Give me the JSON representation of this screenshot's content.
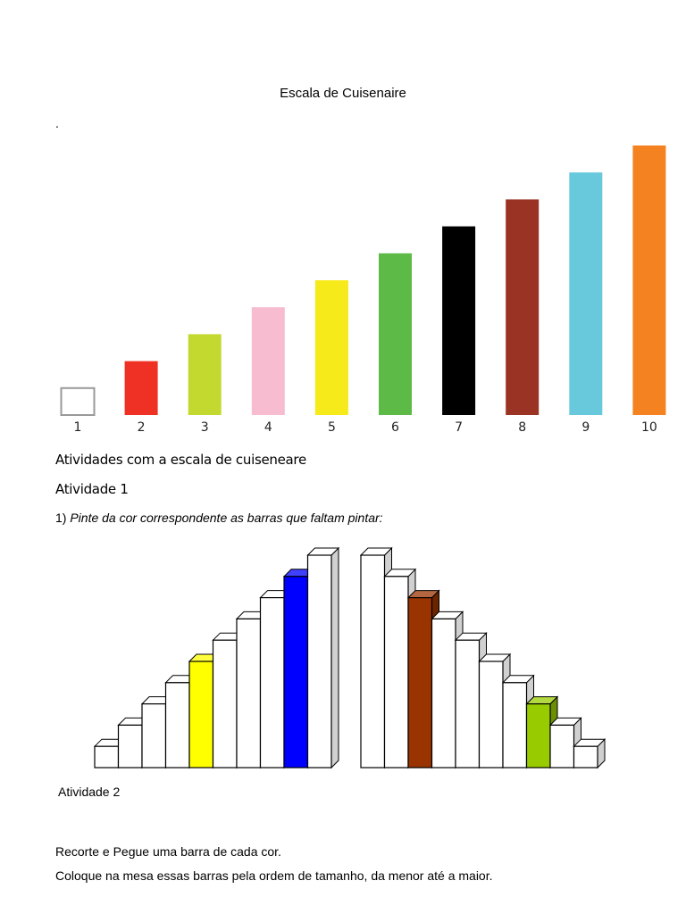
{
  "document": {
    "title": "Escala de Cuisenaire",
    "dot": ".",
    "heading": "Atividades com a escala de cuiseneare",
    "activity1": {
      "label": "Atividade 1",
      "number": "1)",
      "instruction": "Pinte da cor correspondente as barras que faltam pintar:"
    },
    "activity2": {
      "label": "Atividade 2",
      "line1": "Recorte e Pegue uma barra de cada cor.",
      "line2": "Coloque na mesa essas barras pela ordem de tamanho, da menor até a maior."
    }
  },
  "chart_data": {
    "type": "bar",
    "categories": [
      "1",
      "2",
      "3",
      "4",
      "5",
      "6",
      "7",
      "8",
      "9",
      "10"
    ],
    "values": [
      1,
      2,
      3,
      4,
      5,
      6,
      7,
      8,
      9,
      10
    ],
    "colors": [
      "#ffffff",
      "#ee3124",
      "#c3d930",
      "#f8bcd0",
      "#f7ea1a",
      "#5dba47",
      "#000000",
      "#9a3324",
      "#68c9dc",
      "#f58220"
    ],
    "grid": false
  },
  "staircase": {
    "left": {
      "order": "ascending",
      "values": [
        1,
        2,
        3,
        4,
        5,
        6,
        7,
        8,
        9,
        10
      ],
      "colors": {
        "5": "#ffff00",
        "9": "#0000ff"
      }
    },
    "right": {
      "order": "descending",
      "values": [
        10,
        9,
        8,
        7,
        6,
        5,
        4,
        3,
        2,
        1
      ],
      "colors": {
        "8": "#993300",
        "3": "#99cc00"
      }
    }
  }
}
